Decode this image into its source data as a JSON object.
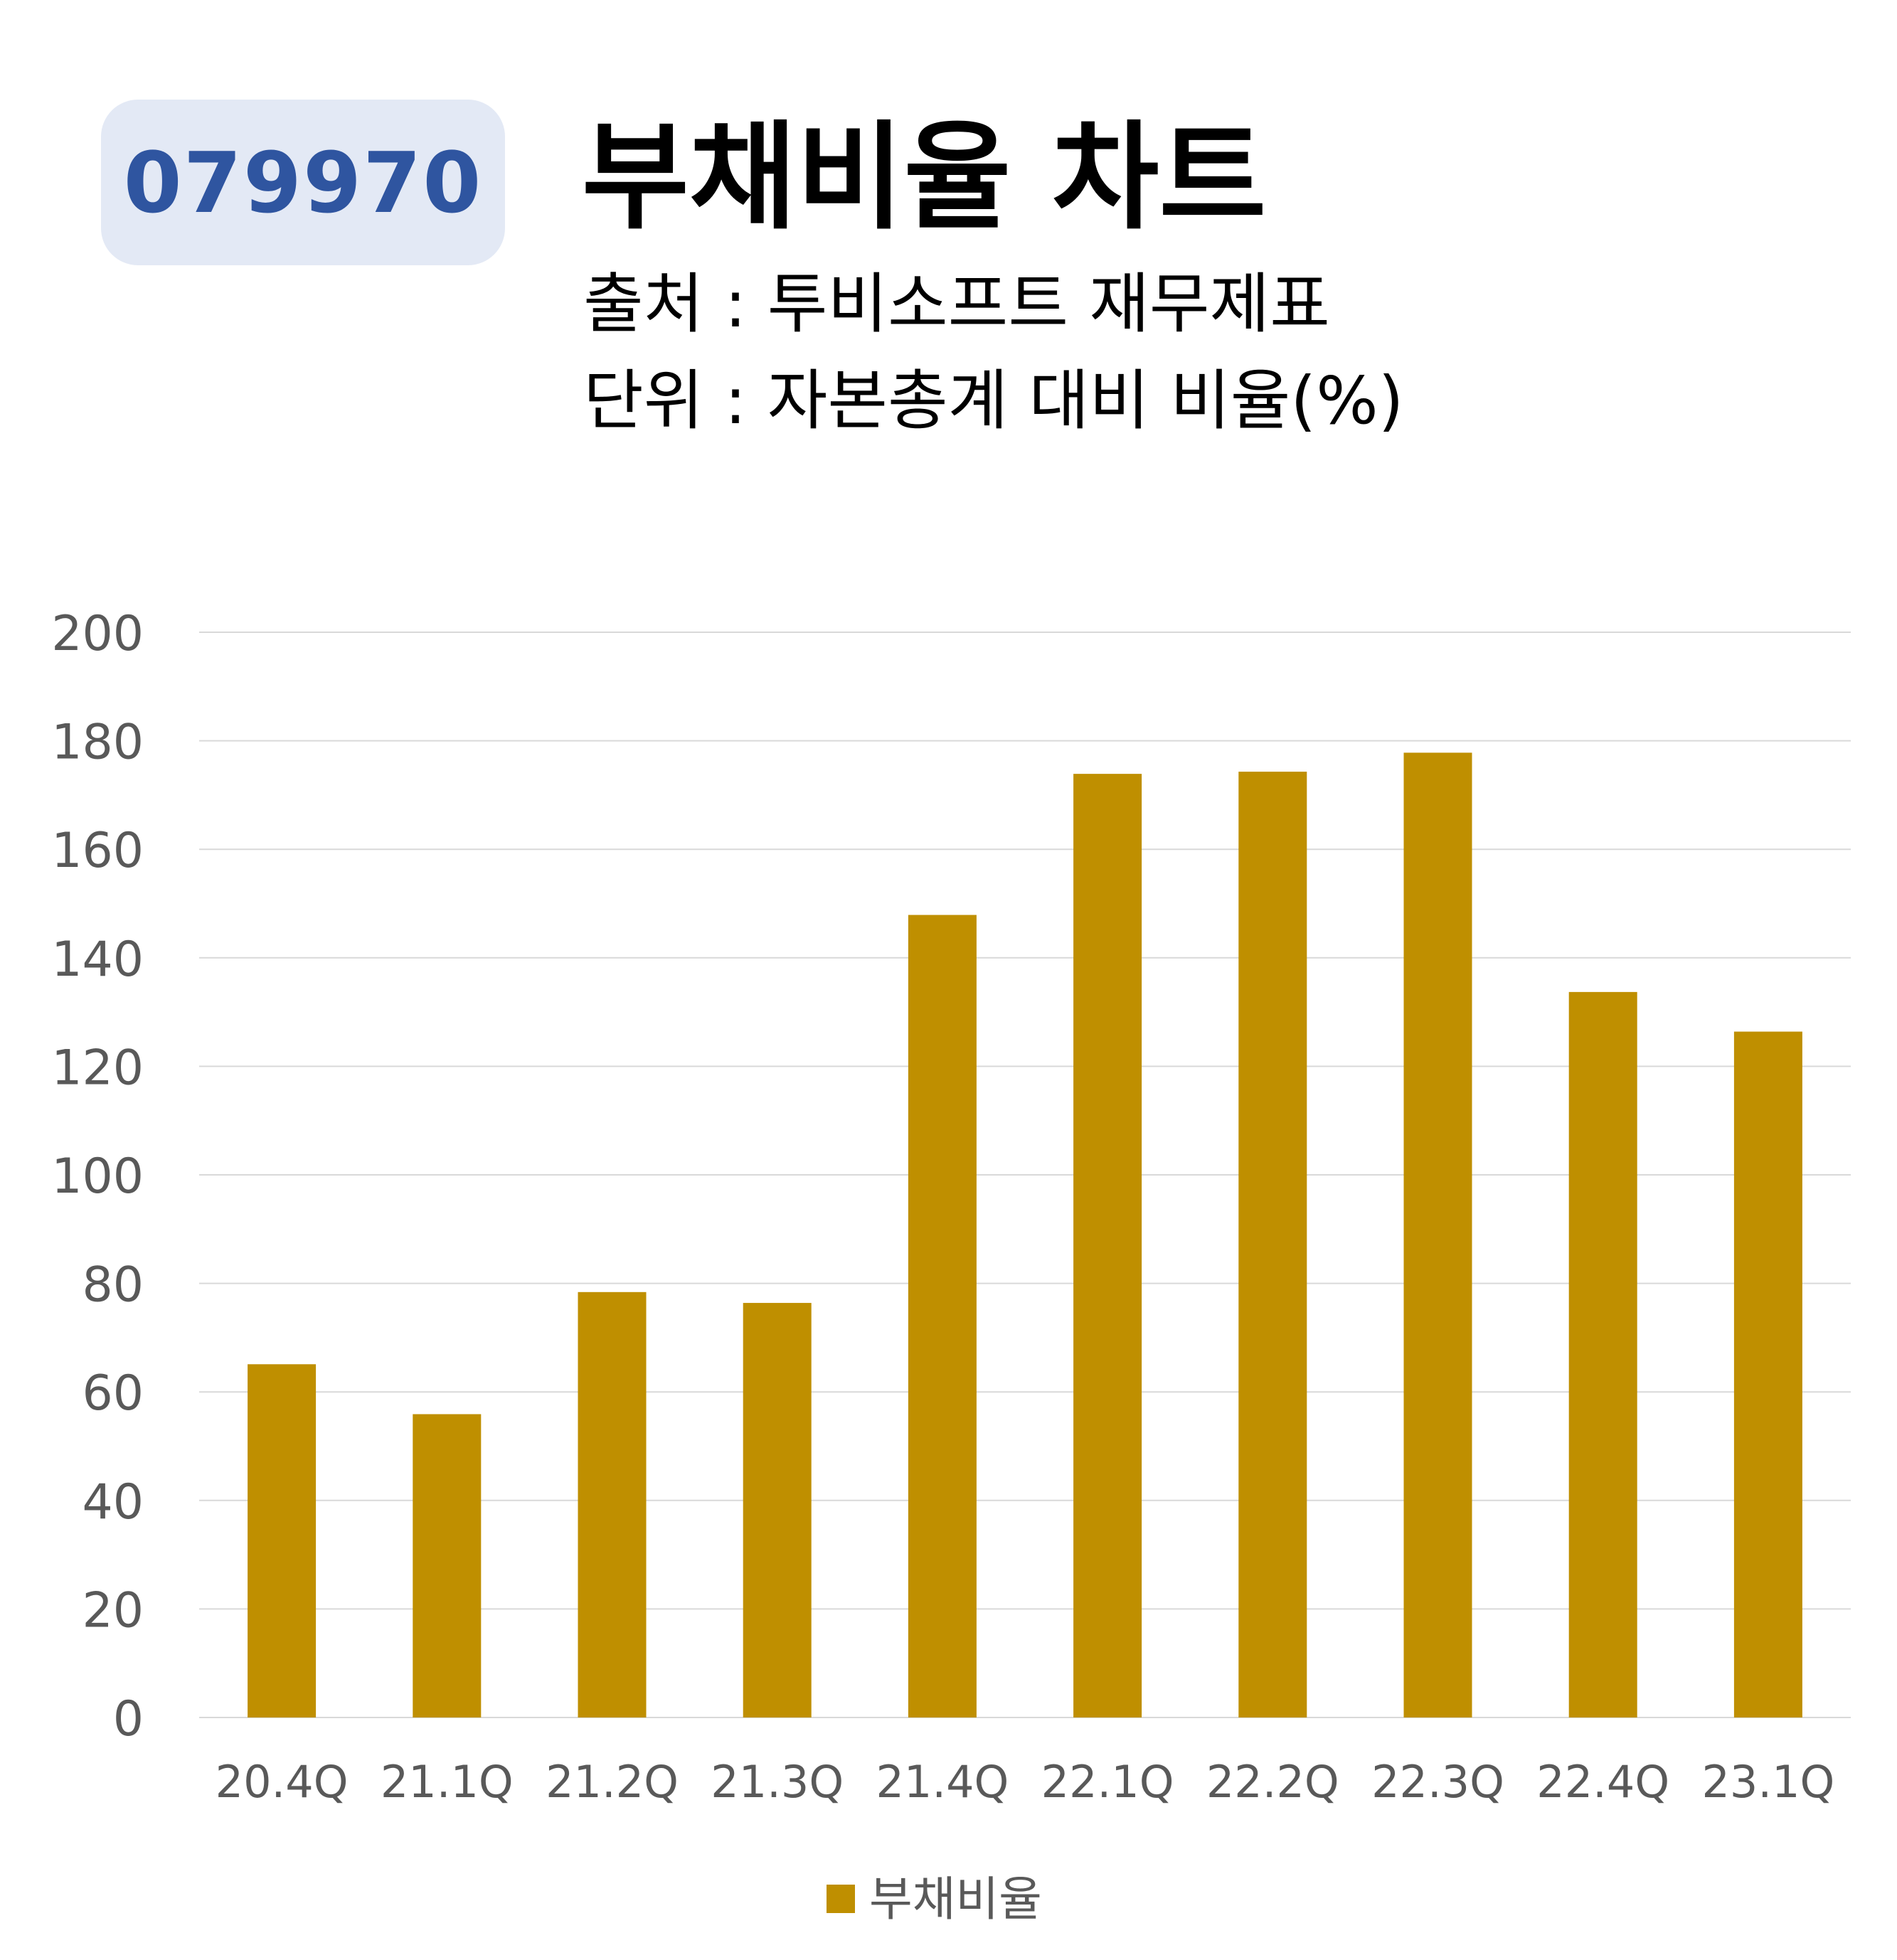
{
  "ticker": "079970",
  "title": "부채비율 차트",
  "source": "출처 : 투비소프트 재무제표",
  "unit": "단위 : 자본총계 대비 비율(%)",
  "colors": {
    "bar": "#bf8f00",
    "grid": "#d9d9d9",
    "axis_text": "#595959",
    "badge_bg": "#e3e9f5",
    "badge_text": "#2f55a0"
  },
  "chart_data": {
    "type": "bar",
    "categories": [
      "20.4Q",
      "21.1Q",
      "21.2Q",
      "21.3Q",
      "21.4Q",
      "22.1Q",
      "22.2Q",
      "22.3Q",
      "22.4Q",
      "23.1Q"
    ],
    "series": [
      {
        "name": "부채비율",
        "values": [
          65.1,
          55.9,
          78.4,
          76.4,
          147.9,
          173.9,
          174.3,
          177.8,
          133.7,
          126.4
        ]
      }
    ],
    "yticks": [
      0,
      20,
      40,
      60,
      80,
      100,
      120,
      140,
      160,
      180,
      200
    ],
    "ylim": [
      0,
      200
    ],
    "grid": true,
    "legend": "bottom"
  }
}
